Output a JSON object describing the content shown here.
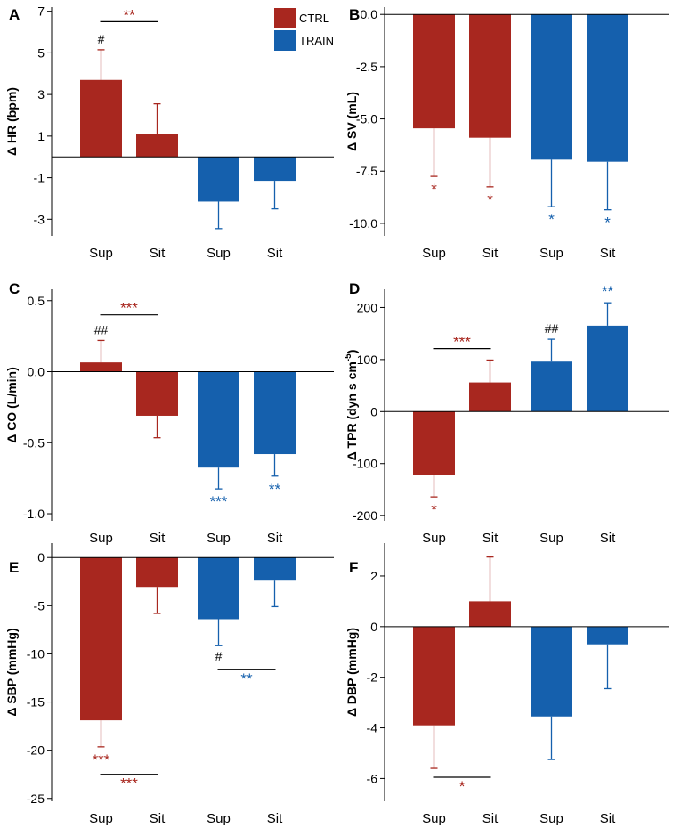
{
  "colors": {
    "ctrl": "#a8271f",
    "train": "#1560ad",
    "axis": "#000000"
  },
  "legend": [
    {
      "key": "ctrl",
      "label": "CTRL"
    },
    {
      "key": "train",
      "label": "TRAIN"
    }
  ],
  "chart_data": [
    {
      "panel": "A",
      "type": "bar",
      "ylabel": "Δ HR (bpm)",
      "ylim": [
        -3.8,
        7.2
      ],
      "yticks": [
        "7",
        "5",
        "3",
        "1",
        "-1",
        "-3"
      ],
      "ytick_values": [
        7,
        5,
        3,
        1,
        -1,
        -3
      ],
      "categories": [
        "Sup",
        "Sit",
        "Sup",
        "Sit"
      ],
      "groups": [
        "ctrl",
        "ctrl",
        "train",
        "train"
      ],
      "values": [
        3.7,
        1.1,
        -2.15,
        -1.15
      ],
      "errors": [
        1.45,
        1.45,
        1.3,
        1.35
      ],
      "markers": [
        {
          "bar": 0,
          "text": "#",
          "color": "#000000"
        }
      ],
      "brackets": [
        {
          "from": 0,
          "to": 1,
          "level": 6.5,
          "text": "**",
          "color": "#a8271f",
          "pos": "above"
        }
      ]
    },
    {
      "panel": "B",
      "type": "bar",
      "ylabel": "Δ SV (mL)",
      "ylim": [
        -10.6,
        0.35
      ],
      "yticks": [
        "0.0",
        "-2.5",
        "-5.0",
        "-7.5",
        "-10.0"
      ],
      "ytick_values": [
        0,
        -2.5,
        -5,
        -7.5,
        -10
      ],
      "categories": [
        "Sup",
        "Sit",
        "Sup",
        "Sit"
      ],
      "groups": [
        "ctrl",
        "ctrl",
        "train",
        "train"
      ],
      "values": [
        -5.45,
        -5.9,
        -6.95,
        -7.05
      ],
      "errors": [
        2.3,
        2.35,
        2.25,
        2.3
      ],
      "markers": [
        {
          "bar": 0,
          "text": "*",
          "color": "#a8271f"
        },
        {
          "bar": 1,
          "text": "*",
          "color": "#a8271f"
        },
        {
          "bar": 2,
          "text": "*",
          "color": "#1560ad"
        },
        {
          "bar": 3,
          "text": "*",
          "color": "#1560ad"
        }
      ],
      "brackets": []
    },
    {
      "panel": "C",
      "type": "bar",
      "ylabel": "Δ CO (L/min)",
      "ylim": [
        -1.05,
        0.58
      ],
      "yticks": [
        "0.5",
        "0.0",
        "-0.5",
        "-1.0"
      ],
      "ytick_values": [
        0.5,
        0,
        -0.5,
        -1.0
      ],
      "categories": [
        "Sup",
        "Sit",
        "Sup",
        "Sit"
      ],
      "groups": [
        "ctrl",
        "ctrl",
        "train",
        "train"
      ],
      "values": [
        0.065,
        -0.31,
        -0.675,
        -0.58
      ],
      "errors": [
        0.155,
        0.155,
        0.15,
        0.155
      ],
      "markers": [
        {
          "bar": 0,
          "text": "##",
          "color": "#000000"
        },
        {
          "bar": 2,
          "text": "***",
          "color": "#1560ad"
        },
        {
          "bar": 3,
          "text": "**",
          "color": "#1560ad"
        }
      ],
      "brackets": [
        {
          "from": 0,
          "to": 1,
          "level": 0.4,
          "text": "***",
          "color": "#a8271f",
          "pos": "above"
        }
      ]
    },
    {
      "panel": "D",
      "type": "bar",
      "ylabel": "Δ TPR (dyn s cm-5)",
      "ylabel_parts": [
        "Δ TPR (dyn s cm",
        "-5",
        ")"
      ],
      "ylim": [
        -210,
        235
      ],
      "yticks": [
        "200",
        "100",
        "0",
        "-100",
        "-200"
      ],
      "ytick_values": [
        200,
        100,
        0,
        -100,
        -200
      ],
      "categories": [
        "Sup",
        "Sit",
        "Sup",
        "Sit"
      ],
      "groups": [
        "ctrl",
        "ctrl",
        "train",
        "train"
      ],
      "values": [
        -122,
        56,
        96,
        165
      ],
      "errors": [
        42,
        43,
        43,
        44
      ],
      "markers": [
        {
          "bar": 0,
          "text": "*",
          "color": "#a8271f"
        },
        {
          "bar": 2,
          "text": "##",
          "color": "#000000"
        },
        {
          "bar": 3,
          "text": "**",
          "color": "#1560ad"
        }
      ],
      "brackets": [
        {
          "from": 0,
          "to": 1,
          "level": 121,
          "text": "***",
          "color": "#a8271f",
          "pos": "above"
        }
      ]
    },
    {
      "panel": "E",
      "type": "bar",
      "ylabel": "Δ SBP (mmHg)",
      "ylim": [
        -25.3,
        1.5
      ],
      "yticks": [
        "0",
        "-5",
        "-10",
        "-15",
        "-20",
        "-25"
      ],
      "ytick_values": [
        0,
        -5,
        -10,
        -15,
        -20,
        -25
      ],
      "categories": [
        "Sup",
        "Sit",
        "Sup",
        "Sit"
      ],
      "groups": [
        "ctrl",
        "ctrl",
        "train",
        "train"
      ],
      "values": [
        -16.9,
        -3.05,
        -6.4,
        -2.4
      ],
      "errors": [
        2.75,
        2.75,
        2.75,
        2.7
      ],
      "markers": [
        {
          "bar": 0,
          "text": "***",
          "color": "#a8271f"
        },
        {
          "bar": 2,
          "text": "#",
          "color": "#000000"
        }
      ],
      "brackets": [
        {
          "from": 0,
          "to": 1,
          "level": -22.5,
          "text": "***",
          "color": "#a8271f",
          "pos": "below"
        },
        {
          "from": 2,
          "to": 3,
          "level": -11.6,
          "text": "**",
          "color": "#1560ad",
          "pos": "below"
        }
      ]
    },
    {
      "panel": "F",
      "type": "bar",
      "ylabel": "Δ DBP (mmHg)",
      "ylim": [
        -6.9,
        3.3
      ],
      "yticks": [
        "2",
        "0",
        "-2",
        "-4",
        "-6"
      ],
      "ytick_values": [
        2,
        0,
        -2,
        -4,
        -6
      ],
      "categories": [
        "Sup",
        "Sit",
        "Sup",
        "Sit"
      ],
      "groups": [
        "ctrl",
        "ctrl",
        "train",
        "train"
      ],
      "values": [
        -3.9,
        1.0,
        -3.55,
        -0.7
      ],
      "errors": [
        1.7,
        1.75,
        1.7,
        1.75
      ],
      "markers": [],
      "brackets": [
        {
          "from": 0,
          "to": 1,
          "level": -5.95,
          "text": "*",
          "color": "#a8271f",
          "pos": "below"
        }
      ]
    }
  ]
}
